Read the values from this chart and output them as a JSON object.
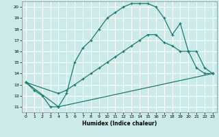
{
  "xlabel": "Humidex (Indice chaleur)",
  "background_color": "#cceaea",
  "grid_color": "#ffffff",
  "line_color": "#1a7a6e",
  "xlim": [
    -0.5,
    23.5
  ],
  "ylim": [
    10.5,
    20.5
  ],
  "xticks": [
    0,
    1,
    2,
    3,
    4,
    5,
    6,
    7,
    8,
    9,
    10,
    11,
    12,
    13,
    14,
    15,
    16,
    17,
    18,
    19,
    20,
    21,
    22,
    23
  ],
  "yticks": [
    11,
    12,
    13,
    14,
    15,
    16,
    17,
    18,
    19,
    20
  ],
  "curve1_x": [
    0,
    1,
    2,
    3,
    4,
    5,
    6,
    7,
    8,
    9,
    10,
    11,
    12,
    13,
    14,
    15,
    16,
    17,
    18,
    19,
    20,
    21,
    22,
    23
  ],
  "curve1_y": [
    13.2,
    12.5,
    12.0,
    11.0,
    11.0,
    12.2,
    15.0,
    16.3,
    17.0,
    18.0,
    19.0,
    19.5,
    20.0,
    20.3,
    20.3,
    20.3,
    20.0,
    19.0,
    17.5,
    18.5,
    16.0,
    14.5,
    14.0,
    14.0
  ],
  "curve2_x": [
    0,
    4,
    5,
    6,
    7,
    8,
    9,
    10,
    11,
    12,
    13,
    14,
    15,
    16,
    17,
    18,
    19,
    20,
    21,
    22,
    23
  ],
  "curve2_y": [
    13.2,
    12.2,
    12.5,
    13.0,
    13.5,
    14.0,
    14.5,
    15.0,
    15.5,
    16.0,
    16.5,
    17.0,
    17.5,
    17.5,
    16.8,
    16.5,
    16.0,
    16.0,
    16.0,
    14.5,
    14.0
  ],
  "curve3_x": [
    0,
    4,
    23
  ],
  "curve3_y": [
    13.2,
    11.0,
    14.0
  ]
}
